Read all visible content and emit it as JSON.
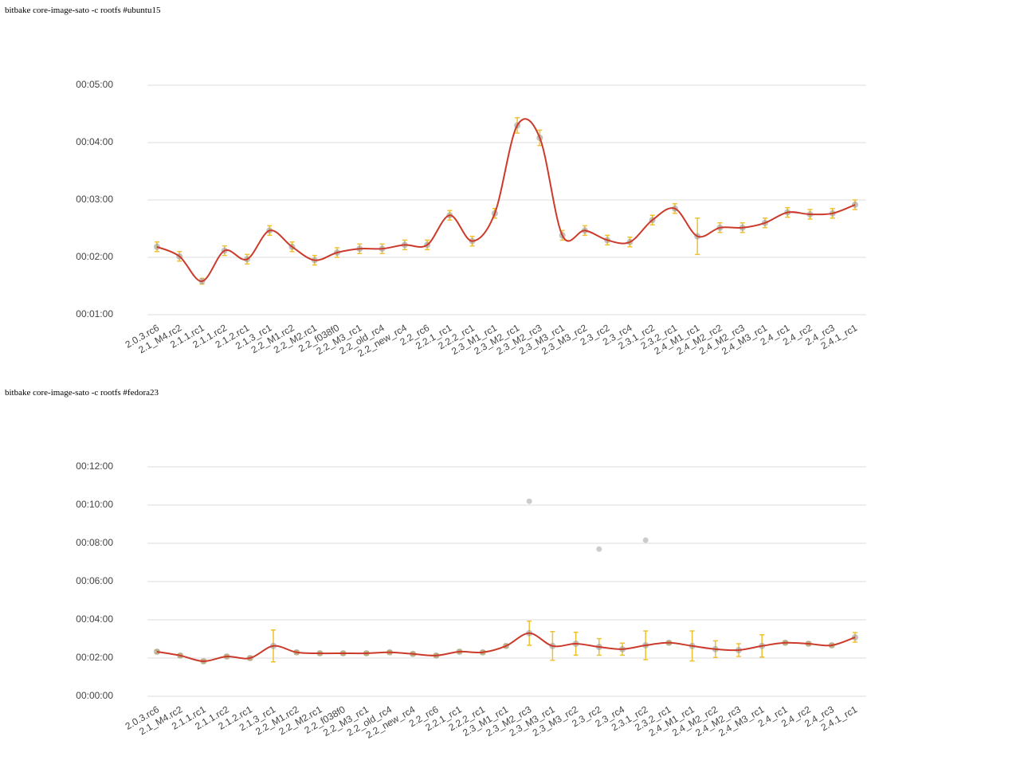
{
  "chart_data": [
    {
      "type": "line",
      "title": "bitbake core-image-sato -c rootfs #ubuntu15",
      "categories": [
        "2.0.3.rc6",
        "2.1_M4.rc2",
        "2.1.1.rc1",
        "2.1.1.rc2",
        "2.1.2.rc1",
        "2.1.3_rc1",
        "2.2_M1.rc2",
        "2.2_M2.rc1",
        "2.2_f038f0",
        "2.2_M3_rc1",
        "2.2_old_rc4",
        "2.2_new_rc4",
        "2.2_rc6",
        "2.2.1_rc1",
        "2.2.2_rc1",
        "2.3_M1_rc1",
        "2.3_M2_rc1",
        "2.3_M2_rc3",
        "2.3_M3_rc1",
        "2.3_M3_rc2",
        "2.3_rc2",
        "2.3_rc4",
        "2.3.1_rc2",
        "2.3.2_rc1",
        "2.4_M1_rc1",
        "2.4_M2_rc2",
        "2.4_M2_rc3",
        "2.4_M3_rc1",
        "2.4_rc1",
        "2.4_rc2",
        "2.4_rc3",
        "2.4.1_rc1"
      ],
      "values": [
        131,
        121,
        95,
        127,
        118,
        148,
        131,
        117,
        125,
        129,
        129,
        133,
        133,
        164,
        137,
        166,
        258,
        245,
        143,
        148,
        138,
        136,
        159,
        171,
        142,
        151,
        151,
        156,
        167,
        165,
        166,
        175
      ],
      "errors": [
        5,
        5,
        3,
        5,
        5,
        5,
        5,
        5,
        5,
        5,
        5,
        5,
        5,
        5,
        5,
        5,
        8,
        8,
        5,
        5,
        5,
        5,
        5,
        5,
        19,
        5,
        5,
        5,
        5,
        5,
        5,
        5
      ],
      "color": "#cc3a2b",
      "error_color": "#f0c030",
      "ylim": [
        60,
        300
      ],
      "yticks": [
        {
          "value": 60,
          "label": "00:01:00"
        },
        {
          "value": 120,
          "label": "00:02:00"
        },
        {
          "value": 180,
          "label": "00:03:00"
        },
        {
          "value": 240,
          "label": "00:04:00"
        },
        {
          "value": 300,
          "label": "00:05:00"
        }
      ],
      "grid": true
    },
    {
      "type": "line",
      "title": "bitbake core-image-sato -c rootfs #fedora23",
      "categories": [
        "2.0.3.rc6",
        "2.1_M4.rc2",
        "2.1.1.rc1",
        "2.1.1.rc2",
        "2.1.2.rc1",
        "2.1.3_rc1",
        "2.2_M1.rc2",
        "2.2_M2.rc1",
        "2.2_f038f0",
        "2.2_M3_rc1",
        "2.2_old_rc4",
        "2.2_new_rc4",
        "2.2_rc6",
        "2.2.1_rc1",
        "2.2.2_rc1",
        "2.3_M1_rc1",
        "2.3_M2_rc3",
        "2.3_M3_rc1",
        "2.3_M3_rc2",
        "2.3_rc2",
        "2.3_rc4",
        "2.3.1_rc2",
        "2.3.2_rc1",
        "2.4_M1_rc1",
        "2.4_M2_rc2",
        "2.4_M2_rc3",
        "2.4_M3_rc1",
        "2.4_rc1",
        "2.4_rc2",
        "2.4_rc3",
        "2.4.1_rc1"
      ],
      "values": [
        140,
        128,
        110,
        125,
        120,
        158,
        138,
        135,
        135,
        135,
        138,
        133,
        128,
        140,
        138,
        158,
        198,
        158,
        165,
        155,
        148,
        160,
        168,
        158,
        148,
        145,
        158,
        168,
        165,
        160,
        185
      ],
      "errors": [
        5,
        5,
        5,
        5,
        5,
        50,
        5,
        5,
        5,
        5,
        5,
        5,
        5,
        5,
        5,
        5,
        38,
        45,
        36,
        26,
        19,
        45,
        5,
        47,
        26,
        20,
        35,
        5,
        5,
        5,
        15
      ],
      "outliers": [
        {
          "category": "2.3_M2_rc3",
          "value": 612
        },
        {
          "category": "2.3_rc2",
          "value": 462
        },
        {
          "category": "2.3.1_rc2",
          "value": 490
        }
      ],
      "color": "#cc3a2b",
      "error_color": "#f0c030",
      "ylim": [
        0,
        720
      ],
      "yticks": [
        {
          "value": 0,
          "label": "00:00:00"
        },
        {
          "value": 120,
          "label": "00:02:00"
        },
        {
          "value": 240,
          "label": "00:04:00"
        },
        {
          "value": 360,
          "label": "00:06:00"
        },
        {
          "value": 480,
          "label": "00:08:00"
        },
        {
          "value": 600,
          "label": "00:10:00"
        },
        {
          "value": 720,
          "label": "00:12:00"
        }
      ],
      "grid": true
    }
  ]
}
